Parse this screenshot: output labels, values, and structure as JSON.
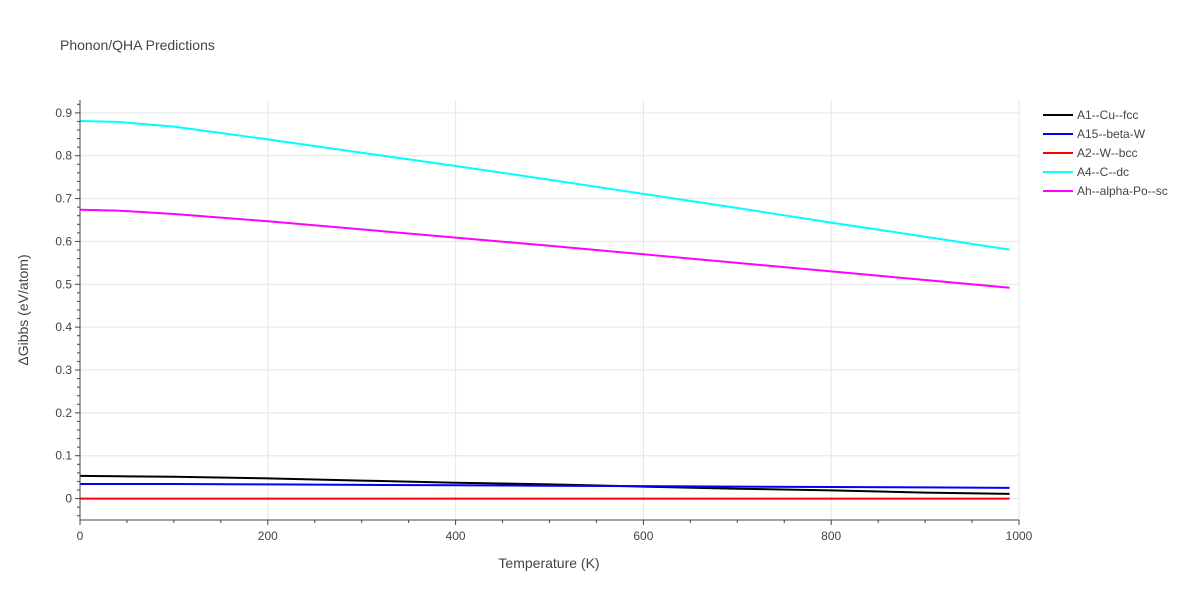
{
  "chart_data": {
    "type": "line",
    "title": "Phonon/QHA Predictions",
    "xlabel": "Temperature (K)",
    "ylabel": "ΔGibbs (eV/atom)",
    "xlim": [
      0,
      1000
    ],
    "ylim": [
      -0.05,
      0.93
    ],
    "x_ticks": [
      0,
      200,
      400,
      600,
      800,
      1000
    ],
    "x_tick_labels": [
      "0",
      "200",
      "400",
      "600",
      "800",
      "1000"
    ],
    "y_ticks": [
      0,
      0.1,
      0.2,
      0.3,
      0.4,
      0.5,
      0.6,
      0.7,
      0.8,
      0.9
    ],
    "y_tick_labels": [
      "0",
      "0.1",
      "0.2",
      "0.3",
      "0.4",
      "0.5",
      "0.6",
      "0.7",
      "0.8",
      "0.9"
    ],
    "grid": true,
    "legend_position": "top-right",
    "x": [
      0,
      40,
      100,
      200,
      300,
      400,
      500,
      600,
      700,
      800,
      900,
      990
    ],
    "series": [
      {
        "name": "A1--Cu--fcc",
        "color": "#000000",
        "values": [
          0.053,
          0.052,
          0.051,
          0.047,
          0.042,
          0.037,
          0.033,
          0.028,
          0.023,
          0.019,
          0.014,
          0.011
        ]
      },
      {
        "name": "A15--beta-W",
        "color": "#0000ff",
        "values": [
          0.034,
          0.034,
          0.034,
          0.033,
          0.032,
          0.031,
          0.03,
          0.029,
          0.028,
          0.027,
          0.026,
          0.025
        ]
      },
      {
        "name": "A2--W--bcc",
        "color": "#ff0000",
        "values": [
          0,
          0,
          0,
          0,
          0,
          0,
          0,
          0,
          0,
          0,
          0,
          0
        ]
      },
      {
        "name": "A4--C--dc",
        "color": "#00ffff",
        "values": [
          0.881,
          0.879,
          0.868,
          0.838,
          0.807,
          0.776,
          0.744,
          0.711,
          0.678,
          0.644,
          0.611,
          0.581
        ]
      },
      {
        "name": "Ah--alpha-Po--sc",
        "color": "#ff00ff",
        "values": [
          0.674,
          0.672,
          0.664,
          0.647,
          0.628,
          0.609,
          0.59,
          0.57,
          0.55,
          0.53,
          0.51,
          0.492
        ]
      }
    ]
  }
}
